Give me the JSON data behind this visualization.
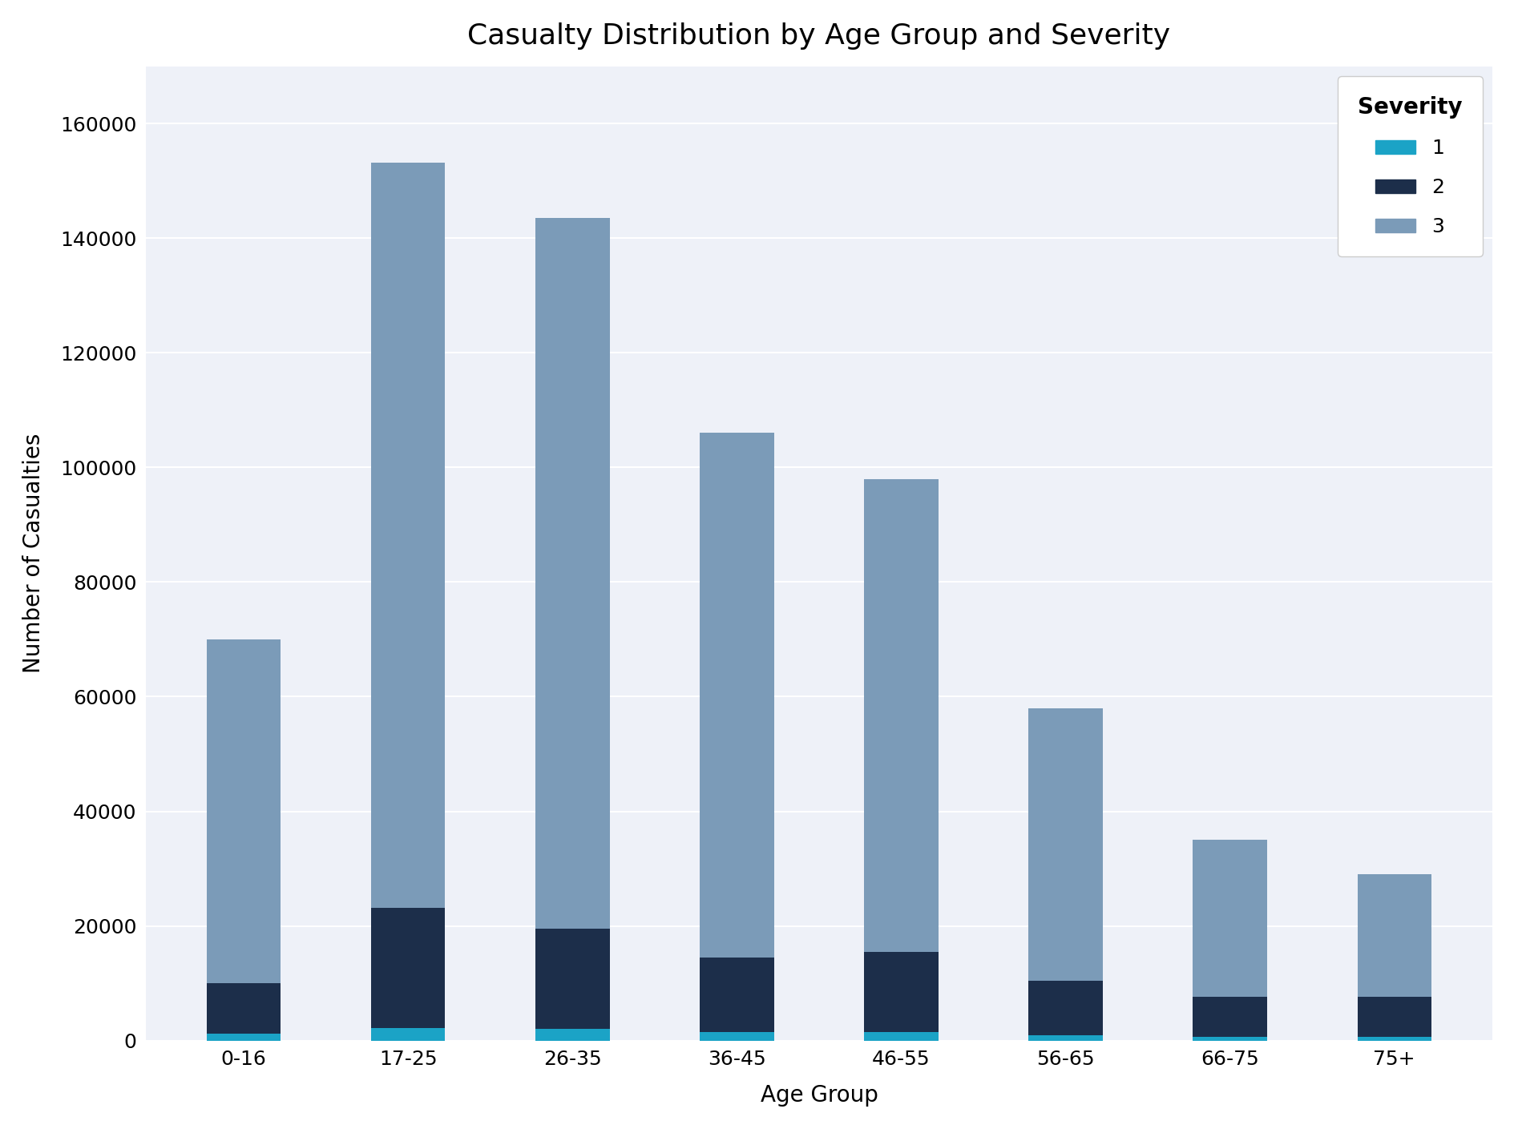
{
  "title": "Casualty Distribution by Age Group and Severity",
  "xlabel": "Age Group",
  "ylabel": "Number of Casualties",
  "categories": [
    "0-16",
    "17-25",
    "26-35",
    "36-45",
    "46-55",
    "56-65",
    "66-75",
    "75+"
  ],
  "severity_labels": [
    "1",
    "2",
    "3"
  ],
  "severity_colors": [
    "#1BA3C6",
    "#1C2E4A",
    "#7B9BB8"
  ],
  "severity_data": {
    "1": [
      1200,
      2200,
      2000,
      1500,
      1500,
      1000,
      700,
      700
    ],
    "2": [
      8800,
      21000,
      17500,
      13000,
      14000,
      9500,
      7000,
      7000
    ],
    "3": [
      60000,
      130000,
      124000,
      91500,
      82500,
      47500,
      27300,
      21300
    ]
  },
  "ylim": [
    0,
    170000
  ],
  "yticks": [
    0,
    20000,
    40000,
    60000,
    80000,
    100000,
    120000,
    140000,
    160000
  ],
  "figure_bg": "#FFFFFF",
  "axes_bg": "#FFFFFF",
  "plot_area_bg": "#EEF1F8",
  "grid_color": "#FFFFFF",
  "title_fontsize": 26,
  "axis_label_fontsize": 20,
  "tick_fontsize": 18,
  "legend_fontsize": 18,
  "legend_title_fontsize": 20,
  "bar_width": 0.45
}
